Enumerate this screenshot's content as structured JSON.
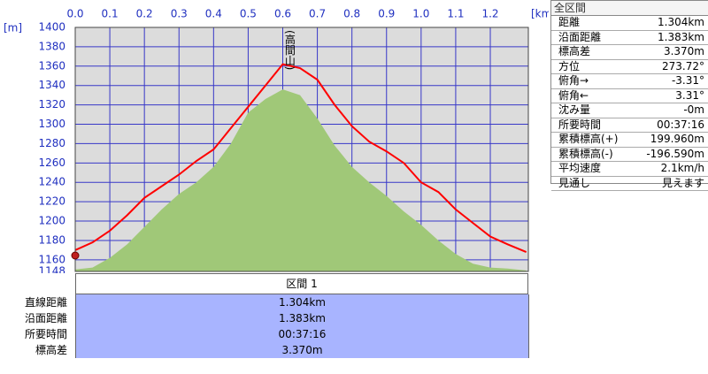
{
  "chart_data": {
    "type": "line",
    "x_unit": "[km]",
    "y_unit": "[m]",
    "x": [
      0,
      0.05,
      0.1,
      0.15,
      0.2,
      0.25,
      0.3,
      0.35,
      0.4,
      0.45,
      0.5,
      0.55,
      0.6,
      0.65,
      0.7,
      0.75,
      0.8,
      0.85,
      0.9,
      0.95,
      1.0,
      1.05,
      1.1,
      1.15,
      1.2,
      1.25,
      1.304
    ],
    "series": [
      {
        "color": "#a0c878",
        "area": true,
        "values": [
          1150,
          1152,
          1162,
          1176,
          1194,
          1212,
          1228,
          1240,
          1256,
          1280,
          1312,
          1326,
          1336,
          1330,
          1306,
          1278,
          1256,
          1240,
          1226,
          1210,
          1196,
          1180,
          1166,
          1156,
          1152,
          1151,
          1149
        ]
      },
      {
        "color": "#ff0000",
        "area": false,
        "values": [
          1170,
          1178,
          1190,
          1206,
          1224,
          1236,
          1248,
          1262,
          1274,
          1296,
          1318,
          1340,
          1362,
          1358,
          1346,
          1320,
          1298,
          1282,
          1272,
          1260,
          1240,
          1230,
          1212,
          1198,
          1184,
          1176,
          1168
        ]
      }
    ],
    "xlim": [
      0,
      1.31
    ],
    "xticks": [
      {
        "value": 0,
        "label": "0.0"
      },
      0.1,
      0.2,
      0.3,
      0.4,
      0.5,
      0.6,
      0.7,
      0.8,
      0.9,
      {
        "value": 1,
        "label": "1.0"
      },
      1.1,
      1.2
    ],
    "ylim": [
      1148,
      1400
    ],
    "yticks": [
      1148,
      1160,
      1180,
      1200,
      1220,
      1240,
      1260,
      1280,
      1300,
      1320,
      1340,
      1360,
      1380,
      1400
    ],
    "grid": true,
    "annotation": {
      "text": "(高間山)",
      "x": 0.62
    }
  },
  "section_table": {
    "header": "区間 1",
    "rows": [
      [
        "直線距離",
        "1.304km"
      ],
      [
        "沿面距離",
        "1.383km"
      ],
      [
        "所要時間",
        "00:37:16"
      ],
      [
        "標高差",
        "3.370m"
      ]
    ]
  },
  "summary_panel": {
    "title": "全区間",
    "rows": [
      [
        "距離",
        "1.304km"
      ],
      [
        "沿面距離",
        "1.383km"
      ],
      [
        "標高差",
        "3.370m"
      ],
      [
        "方位",
        "273.72°"
      ],
      [
        "俯角→",
        "-3.31°"
      ],
      [
        "俯角←",
        "3.31°"
      ],
      [
        "沈み量",
        "-0m"
      ],
      [
        "所要時間",
        "00:37:16"
      ],
      [
        "累積標高(+)",
        "199.960m"
      ],
      [
        "累積標高(-)",
        "-196.590m"
      ],
      [
        "平均速度",
        "2.1km/h"
      ],
      [
        "見通し",
        "見えます"
      ]
    ]
  }
}
